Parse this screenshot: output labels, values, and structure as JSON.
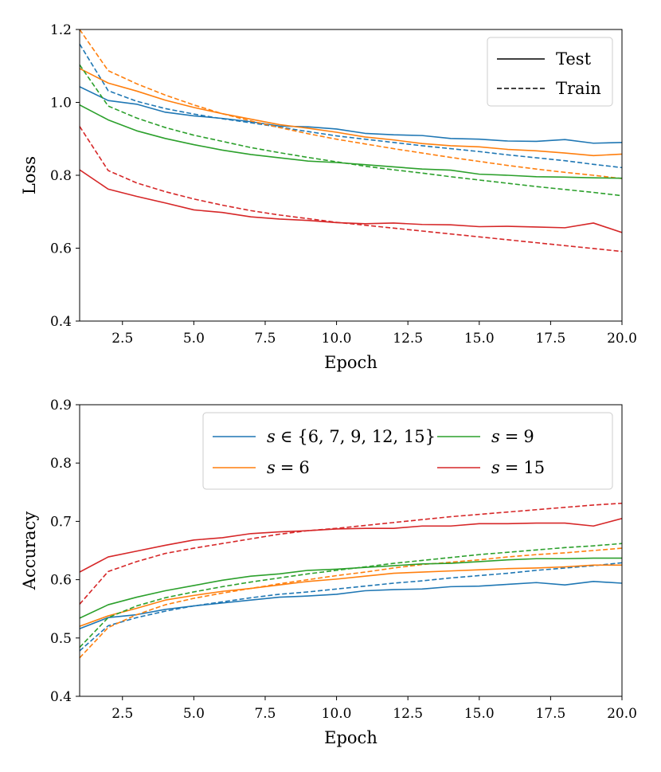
{
  "chart_data": [
    {
      "type": "line",
      "xlabel": "Epoch",
      "ylabel": "Loss",
      "xlim": [
        1,
        20
      ],
      "ylim": [
        0.4,
        1.2
      ],
      "xticks": [
        "2.5",
        "5.0",
        "7.5",
        "10.0",
        "12.5",
        "15.0",
        "17.5",
        "20.0"
      ],
      "yticks": [
        "0.4",
        "0.6",
        "0.8",
        "1.0",
        "1.2"
      ],
      "grid": false,
      "legend": {
        "position": "top-right",
        "entries": [
          {
            "label": "Test",
            "style": "solid"
          },
          {
            "label": "Train",
            "style": "dashed"
          }
        ]
      },
      "x": [
        1,
        2,
        3,
        4,
        5,
        6,
        7,
        8,
        9,
        10,
        11,
        12,
        13,
        14,
        15,
        16,
        17,
        18,
        19,
        20
      ],
      "series": [
        {
          "color": "#1f77b4",
          "style": "solid",
          "values": [
            1.043,
            1.005,
            0.995,
            0.973,
            0.963,
            0.956,
            0.947,
            0.935,
            0.933,
            0.927,
            0.915,
            0.911,
            0.909,
            0.901,
            0.899,
            0.894,
            0.893,
            0.898,
            0.888,
            0.89
          ]
        },
        {
          "color": "#1f77b4",
          "style": "dashed",
          "values": [
            1.16,
            1.032,
            1.003,
            0.983,
            0.968,
            0.955,
            0.944,
            0.932,
            0.92,
            0.908,
            0.899,
            0.89,
            0.881,
            0.873,
            0.865,
            0.856,
            0.848,
            0.84,
            0.83,
            0.821
          ]
        },
        {
          "color": "#ff7f0e",
          "style": "solid",
          "values": [
            1.093,
            1.053,
            1.031,
            1.006,
            0.986,
            0.969,
            0.954,
            0.939,
            0.929,
            0.918,
            0.905,
            0.897,
            0.887,
            0.881,
            0.878,
            0.871,
            0.867,
            0.861,
            0.854,
            0.858
          ]
        },
        {
          "color": "#ff7f0e",
          "style": "dashed",
          "values": [
            1.2,
            1.087,
            1.051,
            1.02,
            0.993,
            0.969,
            0.949,
            0.931,
            0.914,
            0.899,
            0.886,
            0.873,
            0.861,
            0.849,
            0.838,
            0.827,
            0.817,
            0.808,
            0.8,
            0.791
          ]
        },
        {
          "color": "#2ca02c",
          "style": "solid",
          "values": [
            0.993,
            0.952,
            0.922,
            0.901,
            0.884,
            0.869,
            0.857,
            0.848,
            0.839,
            0.835,
            0.829,
            0.823,
            0.817,
            0.814,
            0.803,
            0.8,
            0.796,
            0.795,
            0.793,
            0.792
          ]
        },
        {
          "color": "#2ca02c",
          "style": "dashed",
          "values": [
            1.103,
            0.99,
            0.957,
            0.931,
            0.91,
            0.893,
            0.876,
            0.862,
            0.849,
            0.837,
            0.825,
            0.815,
            0.806,
            0.796,
            0.787,
            0.778,
            0.769,
            0.761,
            0.753,
            0.744
          ]
        },
        {
          "color": "#d62728",
          "style": "solid",
          "values": [
            0.815,
            0.762,
            0.742,
            0.724,
            0.705,
            0.698,
            0.686,
            0.68,
            0.676,
            0.67,
            0.667,
            0.669,
            0.665,
            0.664,
            0.659,
            0.66,
            0.658,
            0.656,
            0.669,
            0.643
          ]
        },
        {
          "color": "#d62728",
          "style": "dashed",
          "values": [
            0.934,
            0.813,
            0.779,
            0.755,
            0.735,
            0.718,
            0.703,
            0.691,
            0.681,
            0.671,
            0.663,
            0.655,
            0.647,
            0.639,
            0.631,
            0.623,
            0.615,
            0.607,
            0.599,
            0.591
          ]
        }
      ]
    },
    {
      "type": "line",
      "xlabel": "Epoch",
      "ylabel": "Accuracy",
      "xlim": [
        1,
        20
      ],
      "ylim": [
        0.4,
        0.9
      ],
      "xticks": [
        "2.5",
        "5.0",
        "7.5",
        "10.0",
        "12.5",
        "15.0",
        "17.5",
        "20.0"
      ],
      "yticks": [
        "0.4",
        "0.5",
        "0.6",
        "0.7",
        "0.8",
        "0.9"
      ],
      "grid": false,
      "legend": {
        "position": "top-right",
        "entries": [
          {
            "label_prefix": "s",
            "label_rel": "∈",
            "label_value": "{6, 7, 9, 12, 15}",
            "color": "#1f77b4"
          },
          {
            "label_prefix": "s",
            "label_rel": "=",
            "label_value": "6",
            "color": "#ff7f0e"
          },
          {
            "label_prefix": "s",
            "label_rel": "=",
            "label_value": "9",
            "color": "#2ca02c"
          },
          {
            "label_prefix": "s",
            "label_rel": "=",
            "label_value": "15",
            "color": "#d62728"
          }
        ]
      },
      "x": [
        1,
        2,
        3,
        4,
        5,
        6,
        7,
        8,
        9,
        10,
        11,
        12,
        13,
        14,
        15,
        16,
        17,
        18,
        19,
        20
      ],
      "series": [
        {
          "name": "s ∈ {6, 7, 9, 12, 15}",
          "color": "#1f77b4",
          "style": "solid",
          "values": [
            0.516,
            0.535,
            0.54,
            0.549,
            0.555,
            0.56,
            0.565,
            0.57,
            0.572,
            0.575,
            0.581,
            0.583,
            0.584,
            0.588,
            0.589,
            0.592,
            0.595,
            0.591,
            0.597,
            0.594
          ]
        },
        {
          "name": "s ∈ {6, 7, 9, 12, 15}",
          "color": "#1f77b4",
          "style": "dashed",
          "values": [
            0.478,
            0.521,
            0.535,
            0.546,
            0.555,
            0.562,
            0.569,
            0.575,
            0.579,
            0.584,
            0.589,
            0.594,
            0.598,
            0.603,
            0.607,
            0.611,
            0.616,
            0.62,
            0.624,
            0.629
          ]
        },
        {
          "name": "s = 6",
          "color": "#ff7f0e",
          "style": "solid",
          "values": [
            0.52,
            0.538,
            0.551,
            0.565,
            0.573,
            0.58,
            0.585,
            0.591,
            0.597,
            0.601,
            0.606,
            0.611,
            0.613,
            0.615,
            0.617,
            0.619,
            0.62,
            0.622,
            0.625,
            0.625
          ]
        },
        {
          "name": "s = 6",
          "color": "#ff7f0e",
          "style": "dashed",
          "values": [
            0.466,
            0.518,
            0.54,
            0.557,
            0.568,
            0.577,
            0.585,
            0.593,
            0.6,
            0.607,
            0.613,
            0.62,
            0.626,
            0.63,
            0.634,
            0.639,
            0.643,
            0.646,
            0.65,
            0.654
          ]
        },
        {
          "name": "s = 9",
          "color": "#2ca02c",
          "style": "solid",
          "values": [
            0.534,
            0.557,
            0.57,
            0.581,
            0.59,
            0.599,
            0.606,
            0.61,
            0.616,
            0.618,
            0.621,
            0.624,
            0.627,
            0.628,
            0.631,
            0.634,
            0.636,
            0.636,
            0.637,
            0.637
          ]
        },
        {
          "name": "s = 9",
          "color": "#2ca02c",
          "style": "dashed",
          "values": [
            0.484,
            0.535,
            0.555,
            0.569,
            0.579,
            0.588,
            0.596,
            0.603,
            0.61,
            0.616,
            0.622,
            0.628,
            0.633,
            0.638,
            0.643,
            0.647,
            0.651,
            0.655,
            0.658,
            0.662
          ]
        },
        {
          "name": "s = 15",
          "color": "#d62728",
          "style": "solid",
          "values": [
            0.613,
            0.639,
            0.649,
            0.659,
            0.668,
            0.672,
            0.679,
            0.682,
            0.684,
            0.687,
            0.688,
            0.688,
            0.692,
            0.692,
            0.696,
            0.696,
            0.697,
            0.697,
            0.692,
            0.705
          ]
        },
        {
          "name": "s = 15",
          "color": "#d62728",
          "style": "dashed",
          "values": [
            0.558,
            0.614,
            0.631,
            0.645,
            0.654,
            0.662,
            0.67,
            0.678,
            0.684,
            0.688,
            0.693,
            0.698,
            0.703,
            0.708,
            0.712,
            0.716,
            0.72,
            0.724,
            0.728,
            0.731
          ]
        }
      ]
    }
  ]
}
